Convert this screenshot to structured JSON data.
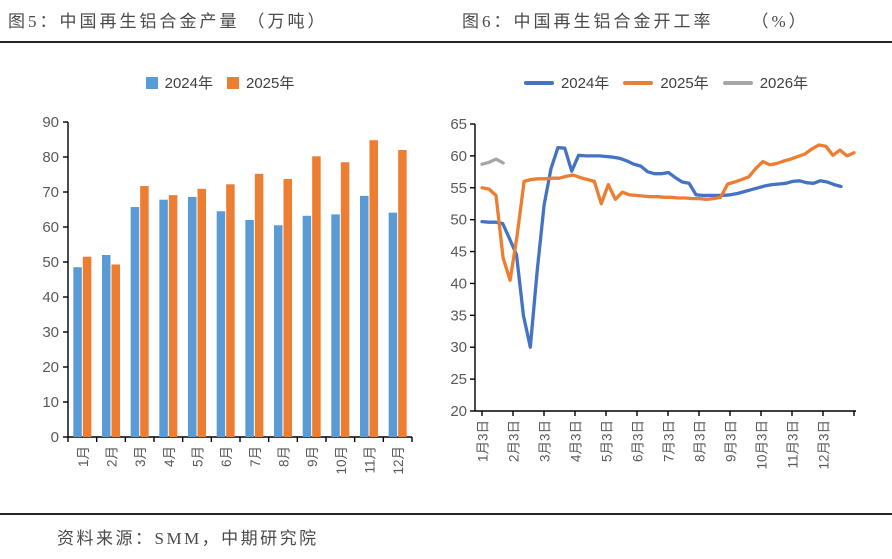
{
  "header": {
    "fig5_title": "图5：中国再生铝合金产量",
    "fig5_unit": "（万吨）",
    "fig6_title": "图6：中国再生铝合金开工率",
    "fig6_unit": "（%）"
  },
  "footer": {
    "source": "资料来源：SMM，中期研究院"
  },
  "colors": {
    "bar_blue": "#5B9BD5",
    "line_blue": "#4472C4",
    "orange": "#ED7D31",
    "gray": "#A6A6A6",
    "axis_line": "#000000",
    "axis_text": "#595959",
    "rule": "#262626"
  },
  "chart_data": [
    {
      "type": "bar",
      "title": "中国再生铝合金产量（万吨）",
      "categories": [
        "1月",
        "2月",
        "3月",
        "4月",
        "5月",
        "6月",
        "7月",
        "8月",
        "9月",
        "10月",
        "11月",
        "12月"
      ],
      "series": [
        {
          "name": "2024年",
          "color": "bar_blue",
          "values": [
            48.5,
            52.0,
            65.7,
            67.8,
            68.6,
            64.5,
            62.0,
            60.5,
            63.2,
            63.6,
            68.9,
            64.1
          ]
        },
        {
          "name": "2025年",
          "color": "orange",
          "values": [
            51.5,
            49.3,
            71.7,
            69.1,
            70.9,
            72.2,
            75.2,
            73.7,
            80.2,
            78.5,
            84.8,
            82.0
          ]
        }
      ],
      "ylim": [
        0,
        90
      ],
      "ytick_step": 10,
      "grid": false,
      "legend_position": "top"
    },
    {
      "type": "line",
      "title": "中国再生铝合金开工率（%）",
      "x_tick_labels": [
        "1月3日",
        "2月3日",
        "3月3日",
        "4月3日",
        "5月3日",
        "6月3日",
        "7月3日",
        "8月3日",
        "9月3日",
        "10月3日",
        "11月3日",
        "12月3日"
      ],
      "series": [
        {
          "name": "2024年",
          "color": "line_blue",
          "span": 0.965,
          "values": [
            49.7,
            49.6,
            49.6,
            49.4,
            47.0,
            44.5,
            35.0,
            30.0,
            42.0,
            52.3,
            58.0,
            61.3,
            61.2,
            57.6,
            60.1,
            60.0,
            60.0,
            60.0,
            59.9,
            59.8,
            59.6,
            59.2,
            58.7,
            58.4,
            57.5,
            57.2,
            57.2,
            57.4,
            56.6,
            55.9,
            55.7,
            53.9,
            53.8,
            53.8,
            53.8,
            53.8,
            53.9,
            54.1,
            54.4,
            54.7,
            55.0,
            55.3,
            55.5,
            55.6,
            55.7,
            56.0,
            56.1,
            55.8,
            55.7,
            56.1,
            55.9,
            55.5,
            55.2
          ]
        },
        {
          "name": "2025年",
          "color": "orange",
          "span": 1.0,
          "values": [
            55.0,
            54.8,
            53.8,
            44.0,
            40.5,
            47.5,
            56.0,
            56.3,
            56.4,
            56.4,
            56.5,
            56.5,
            56.8,
            57.0,
            56.6,
            56.3,
            56.0,
            52.5,
            55.5,
            53.2,
            54.3,
            53.9,
            53.8,
            53.7,
            53.6,
            53.6,
            53.5,
            53.5,
            53.4,
            53.4,
            53.3,
            53.3,
            53.2,
            53.3,
            53.5,
            55.6,
            55.9,
            56.3,
            56.7,
            58.0,
            59.1,
            58.6,
            58.8,
            59.2,
            59.5,
            59.9,
            60.3,
            61.1,
            61.7,
            61.5,
            60.1,
            60.9,
            60.0,
            60.5
          ]
        },
        {
          "name": "2026年",
          "color": "gray",
          "span": 0.057,
          "values": [
            58.7,
            59.0,
            59.5,
            58.9
          ]
        }
      ],
      "ylim": [
        20,
        65
      ],
      "ytick_step": 5,
      "grid": false,
      "legend_position": "top"
    }
  ]
}
